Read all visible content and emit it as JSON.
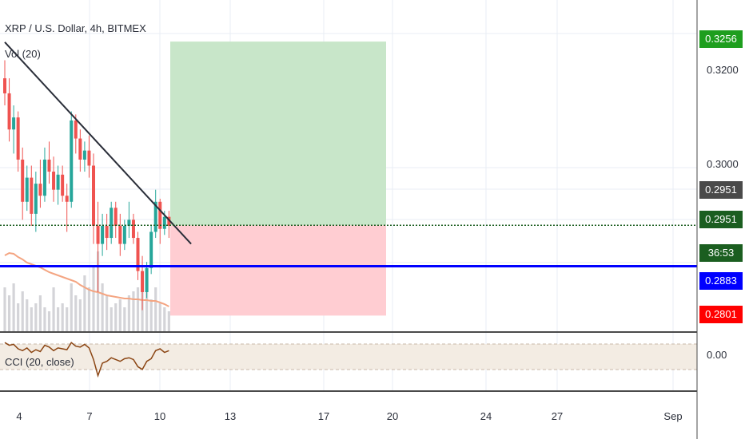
{
  "header": {
    "title": "XRP / U.S. Dollar, 4h, BITMEX",
    "volume_label": "Vol (20)",
    "cci_label": "CCI (20, close)"
  },
  "price_axis": {
    "ticks": [
      "0.3200",
      "0.3000",
      "0.00"
    ]
  },
  "time_axis": {
    "ticks": [
      "4",
      "7",
      "10",
      "13",
      "17",
      "20",
      "24",
      "27",
      "Sep"
    ]
  },
  "tags": {
    "target": "0.3256",
    "last_price_dark": "0.2951",
    "last_price_green": "0.2951",
    "countdown": "36:53",
    "blue_line": "0.2883",
    "stop": "0.2801"
  },
  "colors": {
    "up": "#26a69a",
    "down": "#ef5350",
    "profit_zone": "#c8e6c9",
    "loss_zone": "#ffcdd2",
    "blue_line": "#0000ff",
    "target_tag": "#1e9e1e",
    "stop_tag": "#ff0000",
    "blue_tag": "#0000ff",
    "price_tag_dark": "#4a4a4a",
    "price_tag_green": "#1b5e20"
  },
  "chart_data": {
    "type": "candlestick",
    "symbol": "XRP / U.S. Dollar",
    "interval": "4h",
    "exchange": "BITMEX",
    "y_range": [
      0.2775,
      0.3325
    ],
    "x_labels": [
      "4",
      "7",
      "10",
      "13",
      "17",
      "20",
      "24",
      "27",
      "Sep"
    ],
    "candles": [
      {
        "o": 0.3195,
        "h": 0.3225,
        "l": 0.315,
        "c": 0.317
      },
      {
        "o": 0.317,
        "h": 0.3195,
        "l": 0.309,
        "c": 0.311
      },
      {
        "o": 0.311,
        "h": 0.315,
        "l": 0.307,
        "c": 0.313
      },
      {
        "o": 0.313,
        "h": 0.314,
        "l": 0.304,
        "c": 0.306
      },
      {
        "o": 0.306,
        "h": 0.308,
        "l": 0.296,
        "c": 0.299
      },
      {
        "o": 0.299,
        "h": 0.305,
        "l": 0.2975,
        "c": 0.303
      },
      {
        "o": 0.303,
        "h": 0.305,
        "l": 0.295,
        "c": 0.297
      },
      {
        "o": 0.297,
        "h": 0.304,
        "l": 0.294,
        "c": 0.302
      },
      {
        "o": 0.302,
        "h": 0.306,
        "l": 0.298,
        "c": 0.3
      },
      {
        "o": 0.3,
        "h": 0.308,
        "l": 0.299,
        "c": 0.306
      },
      {
        "o": 0.306,
        "h": 0.309,
        "l": 0.302,
        "c": 0.304
      },
      {
        "o": 0.304,
        "h": 0.3065,
        "l": 0.299,
        "c": 0.301
      },
      {
        "o": 0.301,
        "h": 0.305,
        "l": 0.2985,
        "c": 0.3035
      },
      {
        "o": 0.3035,
        "h": 0.305,
        "l": 0.299,
        "c": 0.3
      },
      {
        "o": 0.3,
        "h": 0.302,
        "l": 0.294,
        "c": 0.299
      },
      {
        "o": 0.299,
        "h": 0.314,
        "l": 0.298,
        "c": 0.3125
      },
      {
        "o": 0.3125,
        "h": 0.3135,
        "l": 0.307,
        "c": 0.3095
      },
      {
        "o": 0.3095,
        "h": 0.311,
        "l": 0.304,
        "c": 0.306
      },
      {
        "o": 0.306,
        "h": 0.309,
        "l": 0.304,
        "c": 0.3075
      },
      {
        "o": 0.3075,
        "h": 0.31,
        "l": 0.303,
        "c": 0.305
      },
      {
        "o": 0.305,
        "h": 0.307,
        "l": 0.292,
        "c": 0.295
      },
      {
        "o": 0.295,
        "h": 0.299,
        "l": 0.284,
        "c": 0.292
      },
      {
        "o": 0.292,
        "h": 0.297,
        "l": 0.29,
        "c": 0.295
      },
      {
        "o": 0.295,
        "h": 0.297,
        "l": 0.291,
        "c": 0.293
      },
      {
        "o": 0.293,
        "h": 0.299,
        "l": 0.292,
        "c": 0.298
      },
      {
        "o": 0.298,
        "h": 0.299,
        "l": 0.293,
        "c": 0.295
      },
      {
        "o": 0.295,
        "h": 0.297,
        "l": 0.29,
        "c": 0.292
      },
      {
        "o": 0.292,
        "h": 0.296,
        "l": 0.291,
        "c": 0.295
      },
      {
        "o": 0.295,
        "h": 0.299,
        "l": 0.293,
        "c": 0.296
      },
      {
        "o": 0.296,
        "h": 0.297,
        "l": 0.292,
        "c": 0.293
      },
      {
        "o": 0.293,
        "h": 0.294,
        "l": 0.286,
        "c": 0.2875
      },
      {
        "o": 0.2875,
        "h": 0.29,
        "l": 0.281,
        "c": 0.284
      },
      {
        "o": 0.284,
        "h": 0.289,
        "l": 0.283,
        "c": 0.288
      },
      {
        "o": 0.288,
        "h": 0.295,
        "l": 0.287,
        "c": 0.294
      },
      {
        "o": 0.294,
        "h": 0.301,
        "l": 0.293,
        "c": 0.299
      },
      {
        "o": 0.299,
        "h": 0.2995,
        "l": 0.292,
        "c": 0.2945
      },
      {
        "o": 0.2945,
        "h": 0.2975,
        "l": 0.2935,
        "c": 0.2965
      },
      {
        "o": 0.2965,
        "h": 0.2975,
        "l": 0.293,
        "c": 0.295
      }
    ],
    "trendline": {
      "from_candle": 0,
      "from_price": 0.3255,
      "to_candle": 42,
      "to_price": 0.292
    },
    "position": {
      "target": 0.3256,
      "entry": 0.2951,
      "stop": 0.2801
    },
    "horizontal_line": 0.2883,
    "volume": [
      0.55,
      0.45,
      0.6,
      0.35,
      0.5,
      0.4,
      0.3,
      0.35,
      0.45,
      0.3,
      0.25,
      0.55,
      0.3,
      0.35,
      0.3,
      0.6,
      0.45,
      0.4,
      0.7,
      0.55,
      0.8,
      1.0,
      0.6,
      0.45,
      0.3,
      0.35,
      0.4,
      0.3,
      0.45,
      0.5,
      0.55,
      0.6,
      0.5,
      0.4,
      0.55,
      0.35,
      0.3,
      0.25
    ],
    "volume_ma": [
      0.95,
      0.98,
      0.97,
      0.93,
      0.9,
      0.86,
      0.84,
      0.82,
      0.8,
      0.77,
      0.74,
      0.72,
      0.7,
      0.68,
      0.66,
      0.64,
      0.62,
      0.58,
      0.55,
      0.52,
      0.5,
      0.49,
      0.47,
      0.45,
      0.44,
      0.43,
      0.42,
      0.41,
      0.41,
      0.4,
      0.4,
      0.39,
      0.39,
      0.38,
      0.38,
      0.36,
      0.34,
      0.31
    ],
    "cci": [
      150,
      120,
      130,
      80,
      60,
      90,
      40,
      70,
      50,
      120,
      100,
      60,
      90,
      80,
      70,
      150,
      110,
      100,
      130,
      90,
      -40,
      -220,
      -80,
      -60,
      -20,
      -40,
      -60,
      -30,
      -20,
      -40,
      -120,
      -150,
      -60,
      -30,
      60,
      80,
      40,
      60
    ]
  }
}
